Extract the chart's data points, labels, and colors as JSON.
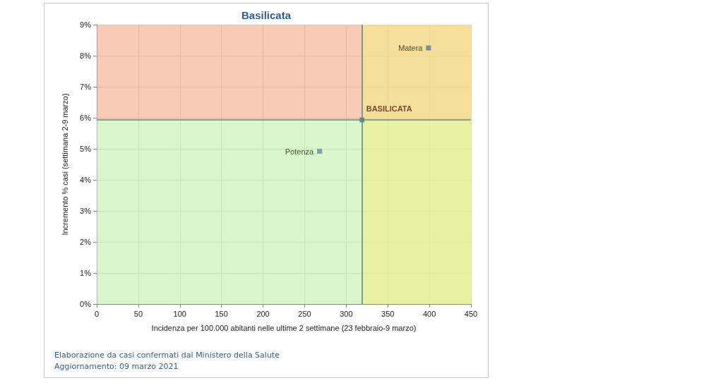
{
  "chart_data": {
    "type": "scatter",
    "title": "Basilicata",
    "xlabel": "Incidenza per 100.000 abitanti nelle ultime 2 settimane (23 febbraio-9 marzo)",
    "ylabel": "Incremento % casi (settimana 2-9 marzo)",
    "series": [
      {
        "name": "Matera",
        "color": "#5b7a9e",
        "x": [
          399
        ],
        "values": [
          8.25
        ]
      },
      {
        "name": "Potenza",
        "color": "#5b8fae",
        "x": [
          268
        ],
        "values": [
          4.92
        ]
      },
      {
        "name": "BASILICATA",
        "color": "#4f7f8f",
        "x": [
          319
        ],
        "values": [
          5.93
        ]
      }
    ],
    "xlim": [
      0,
      450
    ],
    "xticks": [
      0,
      50,
      100,
      150,
      200,
      250,
      300,
      350,
      400,
      450
    ],
    "ylim": [
      0,
      9
    ],
    "yticks": [
      {
        "value": 0,
        "label": "0%"
      },
      {
        "value": 1,
        "label": "1%"
      },
      {
        "value": 2,
        "label": "2%"
      },
      {
        "value": 3,
        "label": "3%"
      },
      {
        "value": 4,
        "label": "4%"
      },
      {
        "value": 5,
        "label": "5%"
      },
      {
        "value": 6,
        "label": "6%"
      },
      {
        "value": 7,
        "label": "7%"
      },
      {
        "value": 8,
        "label": "8%"
      },
      {
        "value": 9,
        "label": "9%"
      }
    ],
    "ref_lines": [
      {
        "axis": "x",
        "value": 319,
        "color": "#5f7f93"
      },
      {
        "axis": "y",
        "value": 5.93,
        "color": "#5f8f7f"
      }
    ],
    "bands": [
      {
        "axis": "y",
        "from": 5.93,
        "to": 9,
        "color": "#f4a07c"
      },
      {
        "axis": "x",
        "from": 319,
        "to": 450,
        "color": "#f4f080"
      },
      {
        "axis": "y",
        "from": 0,
        "to": 5.93,
        "color": "#b8f0a0"
      }
    ],
    "grid": true,
    "marker": "square",
    "legend": false,
    "annotations": [
      "Elaborazione da casi confermati dal Ministero della Salute",
      "Aggiornamento: 09 marzo 2021"
    ]
  }
}
